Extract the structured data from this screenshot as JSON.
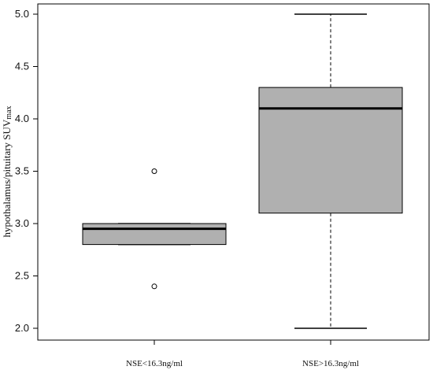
{
  "chart_data": {
    "type": "box",
    "ylabel": "hypothalamus/pituitary SUVmax",
    "ylabel_main": "hypothalamus/pituitary SUV",
    "ylabel_sub": "max",
    "ylim": [
      2.0,
      5.0
    ],
    "yticks": [
      "2.0",
      "2.5",
      "3.0",
      "3.5",
      "4.0",
      "4.5",
      "5.0"
    ],
    "categories": [
      "NSE<16.3ng/ml",
      "NSE>16.3ng/ml"
    ],
    "boxes": [
      {
        "category": "NSE<16.3ng/ml",
        "whisker_low": 2.8,
        "q1": 2.8,
        "median": 2.95,
        "q3": 3.0,
        "whisker_high": 3.0,
        "outliers": [
          3.5,
          2.4
        ]
      },
      {
        "category": "NSE>16.3ng/ml",
        "whisker_low": 2.0,
        "q1": 3.1,
        "median": 4.1,
        "q3": 4.3,
        "whisker_high": 5.0,
        "outliers": []
      }
    ],
    "box_fill": "#b0b0b0",
    "grid": false,
    "legend": "none"
  }
}
